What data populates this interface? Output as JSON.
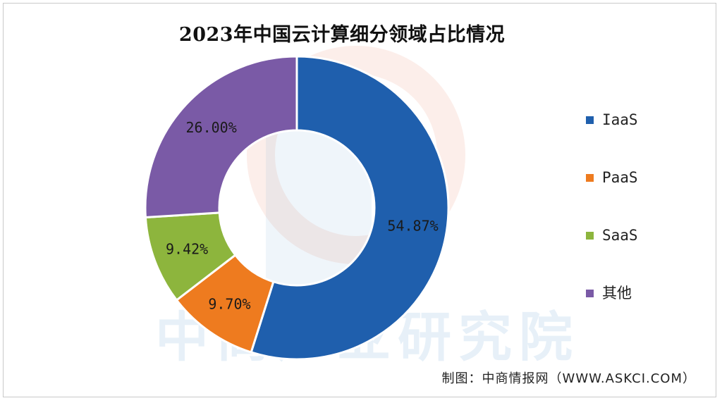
{
  "chart_data": {
    "type": "pie",
    "title": "2023年中国云计算细分领域占比情况",
    "categories": [
      "IaaS",
      "PaaS",
      "SaaS",
      "其他"
    ],
    "values": [
      54.87,
      9.7,
      9.42,
      26.0
    ],
    "data_labels": [
      "54.87%",
      "9.70%",
      "9.42%",
      "26.00%"
    ],
    "colors": [
      "#1f5fad",
      "#ee7b1f",
      "#8db53d",
      "#7a5aa6"
    ],
    "donut": true,
    "legend_position": "right"
  },
  "watermark": {
    "text": "中商产业研究院"
  },
  "source": "制图：中商情报网（WWW.ASKCI.COM）"
}
